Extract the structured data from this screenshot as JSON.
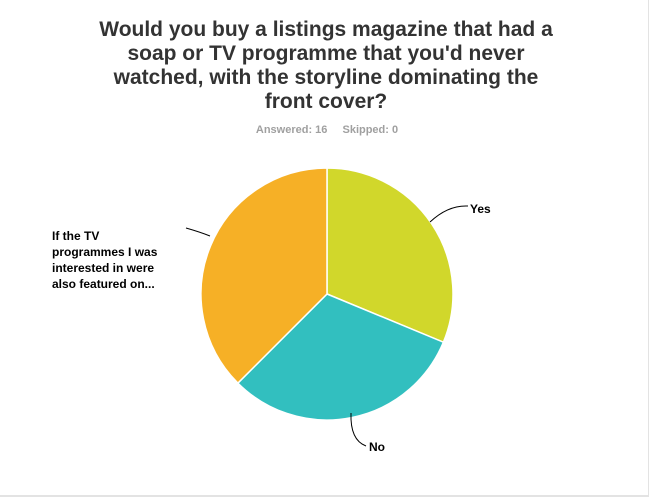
{
  "question": {
    "title": "Would you buy a listings magazine that had a soap or TV programme that you'd never watched, with the storyline dominating the front cover?",
    "answered": "Answered: 16",
    "skipped": "Skipped: 0"
  },
  "chart_data": {
    "type": "pie",
    "title": "Would you buy a listings magazine that had a soap or TV programme that you'd never watched, with the storyline dominating the front cover?",
    "slices": [
      {
        "label": "Yes",
        "value": 31.25,
        "color": "#d1d72b"
      },
      {
        "label": "No",
        "value": 31.25,
        "color": "#32bfbf"
      },
      {
        "label": "If the TV programmes I was interested in were also featured on...",
        "value": 37.5,
        "color": "#f6b026"
      }
    ],
    "label_lines": [
      [
        "Yes"
      ],
      [
        "No"
      ],
      [
        "If the TV",
        "programmes I was",
        "interested in were",
        "also featured on..."
      ]
    ],
    "legend": "none"
  }
}
